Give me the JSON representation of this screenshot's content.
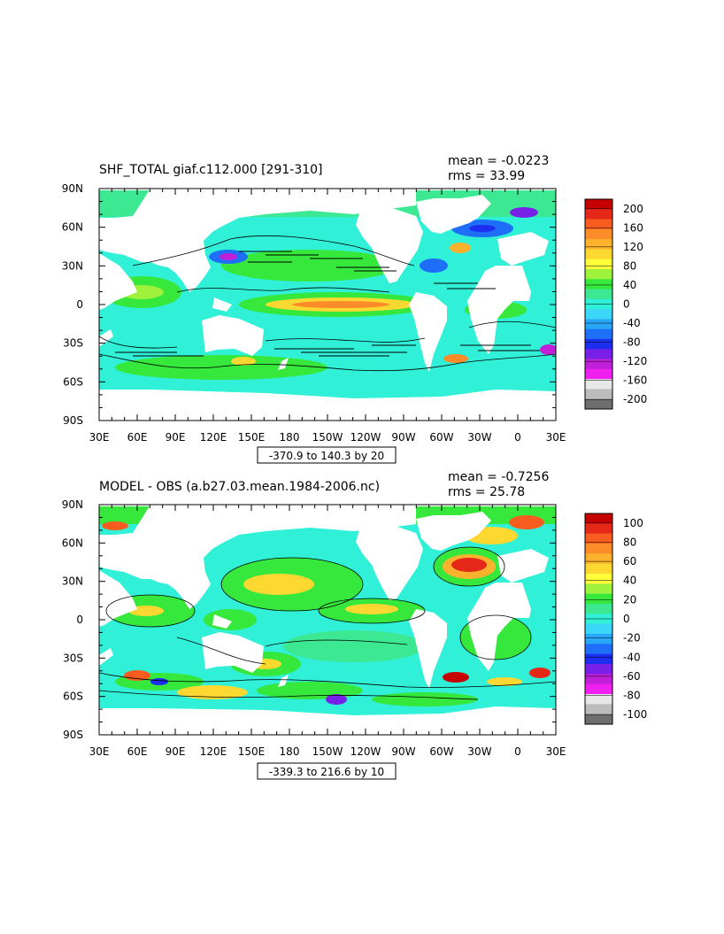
{
  "chart_data": [
    {
      "type": "heatmap",
      "title": "SHF_TOTAL giaf.c112.000 [291-310]",
      "stats": [
        "mean = -0.0223",
        "rms = 33.99"
      ],
      "xticks": [
        "30E",
        "60E",
        "90E",
        "120E",
        "150E",
        "180",
        "150W",
        "120W",
        "90W",
        "60W",
        "30W",
        "0",
        "30E"
      ],
      "yticks": [
        "90N",
        "60N",
        "30N",
        "0",
        "30S",
        "60S",
        "90S"
      ],
      "contour_info": "-370.9 to 140.3 by 20",
      "colorbar": {
        "labels": [
          "200",
          "160",
          "120",
          "80",
          "40",
          "0",
          "-40",
          "-80",
          "-120",
          "-160",
          "-200"
        ],
        "colors": [
          "#c40000",
          "#e62818",
          "#f85c1e",
          "#fb8c28",
          "#fdb22e",
          "#fdd830",
          "#ffff3a",
          "#9ff23c",
          "#36e83c",
          "#3ce892",
          "#30f0d8",
          "#3cd6f8",
          "#28a6f8",
          "#1e6ef8",
          "#1c2ef0",
          "#7820e8",
          "#c020d8",
          "#f020f0",
          "#e8e8e8",
          "#bcbcbc",
          "#6e6e6e"
        ]
      }
    },
    {
      "type": "heatmap",
      "title": "MODEL - OBS (a.b27.03.mean.1984-2006.nc)",
      "stats": [
        "mean = -0.7256",
        "rms = 25.78"
      ],
      "xticks": [
        "30E",
        "60E",
        "90E",
        "120E",
        "150E",
        "180",
        "150W",
        "120W",
        "90W",
        "60W",
        "30W",
        "0",
        "30E"
      ],
      "yticks": [
        "90N",
        "60N",
        "30N",
        "0",
        "30S",
        "60S",
        "90S"
      ],
      "contour_info": "-339.3 to 216.6 by 10",
      "colorbar": {
        "labels": [
          "100",
          "80",
          "60",
          "40",
          "20",
          "0",
          "-20",
          "-40",
          "-60",
          "-80",
          "-100"
        ],
        "colors": [
          "#c40000",
          "#e62818",
          "#f85c1e",
          "#fb8c28",
          "#fdb22e",
          "#fdd830",
          "#ffff3a",
          "#9ff23c",
          "#36e83c",
          "#3ce892",
          "#30f0d8",
          "#3cd6f8",
          "#28a6f8",
          "#1e6ef8",
          "#1c2ef0",
          "#7820e8",
          "#c020d8",
          "#f020f0",
          "#e8e8e8",
          "#bcbcbc",
          "#6e6e6e"
        ]
      }
    }
  ]
}
